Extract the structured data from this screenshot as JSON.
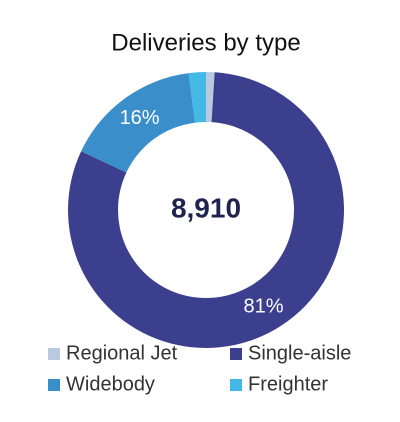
{
  "chart_data": {
    "type": "donut",
    "title": "Deliveries by type",
    "center_label": "8,910",
    "categories": [
      "Regional Jet",
      "Single-aisle",
      "Widebody",
      "Freighter"
    ],
    "values": [
      1,
      81,
      16,
      2
    ],
    "value_labels": [
      null,
      "81%",
      "16%",
      null
    ],
    "colors": [
      "#b9c9e0",
      "#3b3f8e",
      "#3a8fcb",
      "#45b9e6"
    ],
    "legend": "bottom"
  }
}
